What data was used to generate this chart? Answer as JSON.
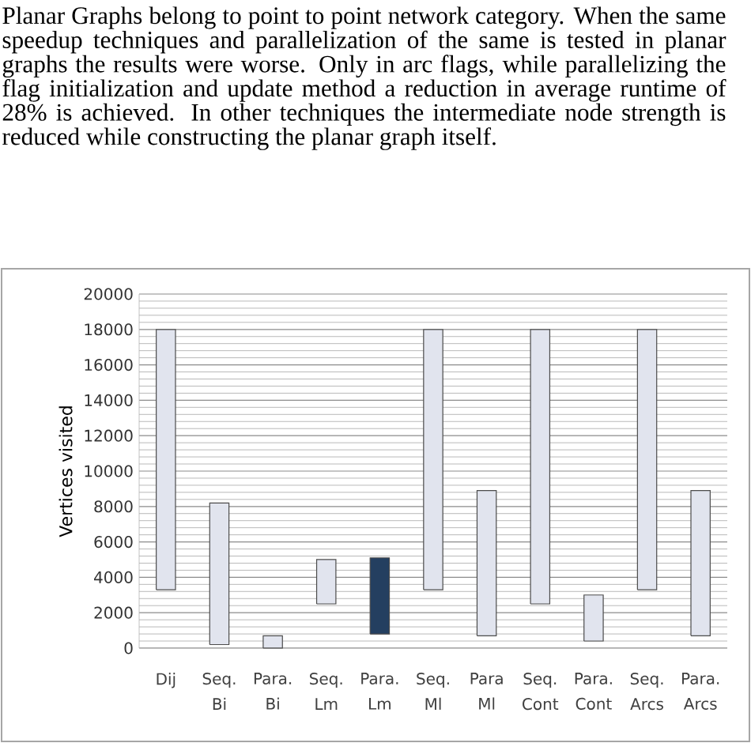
{
  "chart_data": {
    "type": "bar",
    "annotations": [
      "Planar Graphs belong to point to point network category. When the same speedup techniques and parallelization of the same is tested in planar graphs the results were worse. Only in arc flags, while parallelizing the flag initialization and update method a reduction in average runtime of 28% is achieved. In other techniques the intermediate node strength is reduced while constructing the planar graph itself."
    ],
    "ylabel": "Vertices visited",
    "categories": [
      "Dij",
      "Seq. Bi",
      "Para. Bi",
      "Seq. Lm",
      "Para. Lm",
      "Seq. Ml",
      "Para Ml",
      "Seq. Cont",
      "Para. Cont",
      "Seq. Arcs",
      "Para. Arcs"
    ],
    "base": [
      3300,
      200,
      0,
      2500,
      800,
      3300,
      700,
      2500,
      400,
      3300,
      700
    ],
    "values": [
      14700,
      8000,
      700,
      2500,
      4300,
      14700,
      8200,
      15500,
      2600,
      14700,
      8200
    ],
    "colors": [
      "#e1e4ee",
      "#e1e4ee",
      "#e1e4ee",
      "#e1e4ee",
      "#243f60",
      "#e1e4ee",
      "#e1e4ee",
      "#e1e4ee",
      "#e1e4ee",
      "#e1e4ee",
      "#e1e4ee"
    ],
    "ylim": [
      0,
      20000
    ],
    "yticks": [
      0,
      2000,
      4000,
      6000,
      8000,
      10000,
      12000,
      14000,
      16000,
      18000,
      20000
    ],
    "grid": "y"
  }
}
